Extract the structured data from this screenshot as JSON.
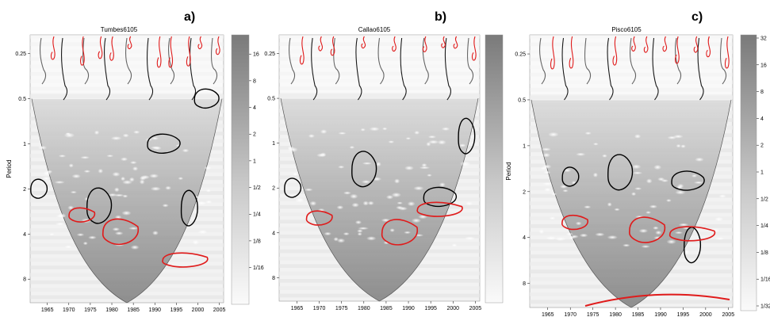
{
  "chart_data": [
    {
      "type": "heatmap",
      "panel_label": "a)",
      "title": "Tumbes6105",
      "ylabel": "Period",
      "xlim": [
        1961,
        2006
      ],
      "x_ticks": [
        "1965",
        "1970",
        "1975",
        "1980",
        "1985",
        "1990",
        "1995",
        "2000",
        "2005"
      ],
      "y_ticks": [
        "0.25",
        "0.5",
        "1",
        "2",
        "4",
        "8"
      ],
      "colorbar_ticks": [
        "16",
        "8",
        "4",
        "2",
        "1",
        "1/2",
        "1/4",
        "1/8",
        "1/16"
      ],
      "colorbar_max": 32,
      "colorbar_min": "1/32",
      "colors": {
        "power_high": "#6e6e6e",
        "power_low": "#ffffff",
        "significance": "#000000",
        "phase_region": "#e01b1b"
      },
      "contours_black": [
        {
          "year": 1963,
          "period": 2.0
        },
        {
          "year": 1977,
          "period": 2.6
        },
        {
          "year": 1992,
          "period": 1.0
        },
        {
          "year": 1998,
          "period": 2.7
        },
        {
          "year": 2002,
          "period": 0.5
        }
      ],
      "contours_red": [
        {
          "year": 1973,
          "period": 3.0
        },
        {
          "year": 1982,
          "period": 3.9
        },
        {
          "year": 1997,
          "period": 6.0
        }
      ]
    },
    {
      "type": "heatmap",
      "panel_label": "b)",
      "title": "Callao6105",
      "ylabel": "",
      "xlim": [
        1961,
        2006
      ],
      "x_ticks": [
        "1965",
        "1970",
        "1975",
        "1980",
        "1985",
        "1990",
        "1995",
        "2000",
        "2005"
      ],
      "y_ticks": [
        "0.25",
        "0.5",
        "1",
        "2",
        "4",
        "8"
      ],
      "colorbar_ticks": [],
      "colorbar_max": 32,
      "colorbar_min": "1/32",
      "colors": {
        "power_high": "#6e6e6e",
        "power_low": "#ffffff",
        "significance": "#000000",
        "phase_region": "#e01b1b"
      },
      "contours_black": [
        {
          "year": 1964,
          "period": 2.0
        },
        {
          "year": 1980,
          "period": 1.5
        },
        {
          "year": 1997,
          "period": 2.3
        },
        {
          "year": 2003,
          "period": 0.9
        }
      ],
      "contours_red": [
        {
          "year": 1970,
          "period": 3.2
        },
        {
          "year": 1988,
          "period": 4.0
        },
        {
          "year": 1997,
          "period": 2.8
        }
      ]
    },
    {
      "type": "heatmap",
      "panel_label": "c)",
      "title": "Pisco6105",
      "ylabel": "Period",
      "xlim": [
        1961,
        2006
      ],
      "x_ticks": [
        "1965",
        "1970",
        "1975",
        "1980",
        "1985",
        "1990",
        "1995",
        "2000",
        "2005"
      ],
      "y_ticks": [
        "0.25",
        "0.5",
        "1",
        "2",
        "4",
        "8"
      ],
      "colorbar_ticks": [
        "32",
        "16",
        "8",
        "4",
        "2",
        "1",
        "1/2",
        "1/4",
        "1/8",
        "1/16",
        "1/32"
      ],
      "colorbar_max": 32,
      "colorbar_min": "1/32",
      "colors": {
        "power_high": "#6e6e6e",
        "power_low": "#ffffff",
        "significance": "#000000",
        "phase_region": "#e01b1b"
      },
      "contours_black": [
        {
          "year": 1970,
          "period": 1.6
        },
        {
          "year": 1981,
          "period": 1.5
        },
        {
          "year": 1996,
          "period": 1.7
        },
        {
          "year": 1997,
          "period": 4.5
        }
      ],
      "contours_red": [
        {
          "year": 1971,
          "period": 3.2
        },
        {
          "year": 1987,
          "period": 3.6
        },
        {
          "year": 1997,
          "period": 3.8
        }
      ]
    }
  ]
}
